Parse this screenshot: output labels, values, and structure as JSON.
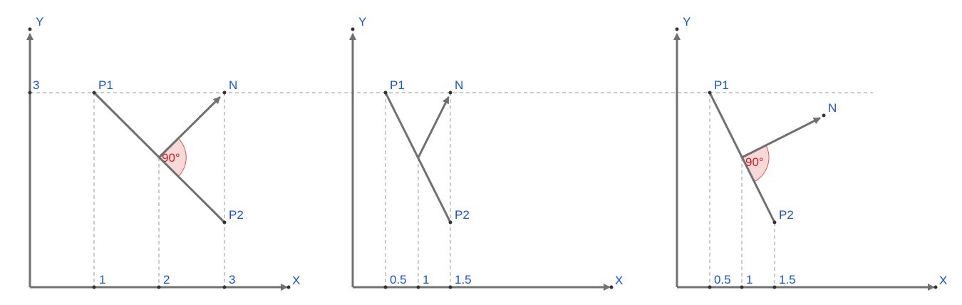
{
  "panels": [
    {
      "y_axis_label": "Y",
      "x_axis_label": "X",
      "x_ticks": [
        "1",
        "2",
        "3"
      ],
      "y_ticks": [
        "3"
      ],
      "points": {
        "p1": "P1",
        "p2": "P2",
        "n": "N"
      },
      "angle_label": "90°"
    },
    {
      "y_axis_label": "Y",
      "x_axis_label": "X",
      "x_ticks": [
        "0.5",
        "1",
        "1.5"
      ],
      "points": {
        "p1": "P1",
        "p2": "P2",
        "n": "N"
      }
    },
    {
      "y_axis_label": "Y",
      "x_axis_label": "X",
      "x_ticks": [
        "0.5",
        "1",
        "1.5"
      ],
      "points": {
        "p1": "P1",
        "p2": "P2",
        "n": "N"
      },
      "angle_label": "90°"
    }
  ],
  "colors": {
    "label": "#1a56c4",
    "angle": "#cc1f1f",
    "line": "#707070",
    "guide": "#9a9a9a"
  }
}
